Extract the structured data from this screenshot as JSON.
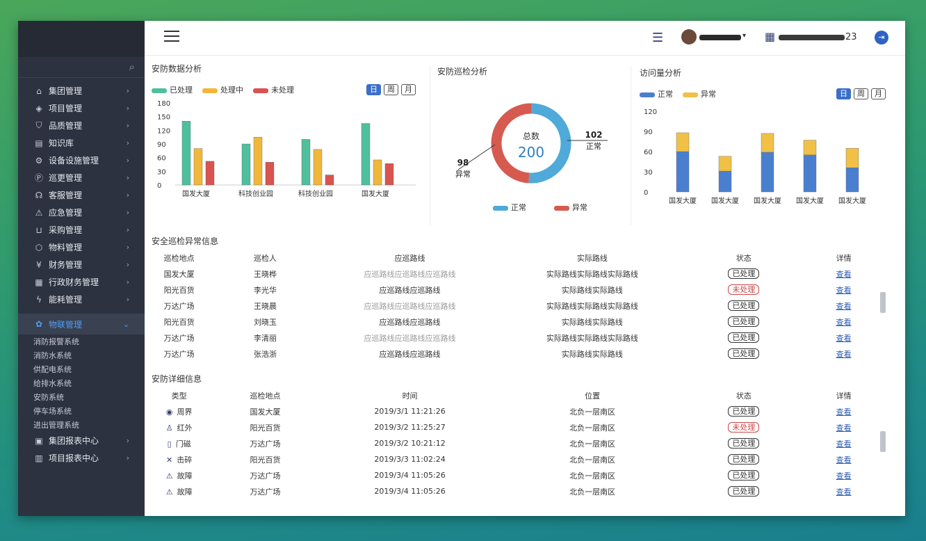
{
  "sidebar": {
    "items": [
      {
        "label": "集团管理",
        "icon": "building-icon",
        "glyph": "⌂"
      },
      {
        "label": "项目管理",
        "icon": "layers-icon",
        "glyph": "◈"
      },
      {
        "label": "品质管理",
        "icon": "shield-icon",
        "glyph": "⛉"
      },
      {
        "label": "知识库",
        "icon": "book-icon",
        "glyph": "▤"
      },
      {
        "label": "设备设施管理",
        "icon": "gear-icon",
        "glyph": "⚙"
      },
      {
        "label": "巡更管理",
        "icon": "patrol-icon",
        "glyph": "Ⓟ"
      },
      {
        "label": "客服管理",
        "icon": "headset-icon",
        "glyph": "☊"
      },
      {
        "label": "应急管理",
        "icon": "alert-icon",
        "glyph": "⚠"
      },
      {
        "label": "采购管理",
        "icon": "cart-icon",
        "glyph": "⊔"
      },
      {
        "label": "物料管理",
        "icon": "box-icon",
        "glyph": "⬡"
      },
      {
        "label": "财务管理",
        "icon": "finance-icon",
        "glyph": "¥"
      },
      {
        "label": "行政财务管理",
        "icon": "document-icon",
        "glyph": "▦"
      },
      {
        "label": "能耗管理",
        "icon": "energy-icon",
        "glyph": "ϟ"
      }
    ],
    "active": {
      "label": "物联管理",
      "icon": "network-icon",
      "glyph": "✿"
    },
    "subitems": [
      "消防报警系统",
      "消防水系统",
      "供配电系统",
      "给排水系统",
      "安防系统",
      "停车场系统",
      "进出管理系统"
    ],
    "bottom": [
      {
        "label": "集团报表中心",
        "icon": "report-icon",
        "glyph": "▣"
      },
      {
        "label": "项目报表中心",
        "icon": "chart-icon",
        "glyph": "▥"
      }
    ]
  },
  "topbar": {
    "date_suffix": "23"
  },
  "security_chart": {
    "title": "安防数据分析",
    "legend": [
      "已处理",
      "处理中",
      "未处理"
    ],
    "range_buttons": [
      "日",
      "周",
      "月"
    ],
    "chart_data": {
      "type": "bar",
      "categories": [
        "国发大厦",
        "科技创业园",
        "科技创业园",
        "国发大厦"
      ],
      "series": [
        {
          "name": "已处理",
          "values": [
            140,
            90,
            100,
            135
          ]
        },
        {
          "name": "处理中",
          "values": [
            80,
            105,
            78,
            55
          ]
        },
        {
          "name": "未处理",
          "values": [
            52,
            50,
            22,
            47
          ]
        }
      ],
      "ylim": [
        0,
        180
      ],
      "yticks": [
        "180",
        "150",
        "120",
        "90",
        "60",
        "30",
        "0"
      ]
    }
  },
  "patrol_chart": {
    "title": "安防巡检分析",
    "center_label": "总数",
    "center_value": "200",
    "normal_value": "102",
    "normal_label": "正常",
    "abnormal_value": "98",
    "abnormal_label": "异常",
    "legend": [
      "正常",
      "异常"
    ],
    "chart_data": {
      "type": "pie",
      "labels": [
        "正常",
        "异常"
      ],
      "values": [
        102,
        98
      ]
    }
  },
  "visitor_chart": {
    "title": "访问量分析",
    "legend": [
      "正常",
      "异常"
    ],
    "range_buttons": [
      "日",
      "周",
      "月"
    ],
    "chart_data": {
      "type": "bar",
      "stacked": true,
      "categories": [
        "国发大厦",
        "国发大厦",
        "国发大厦",
        "国发大厦",
        "国发大厦"
      ],
      "series": [
        {
          "name": "正常",
          "values": [
            60,
            31,
            59,
            55,
            36
          ]
        },
        {
          "name": "异常",
          "values": [
            28,
            22,
            28,
            22,
            29
          ]
        }
      ],
      "ylim": [
        0,
        120
      ],
      "yticks": [
        "120",
        "90",
        "60",
        "30",
        "0"
      ]
    }
  },
  "patrol_table": {
    "title": "安全巡检异常信息",
    "headers": [
      "巡检地点",
      "巡检人",
      "应巡路线",
      "实际路线",
      "状态",
      "详情"
    ],
    "rows": [
      [
        "国发大厦",
        "王晓桦",
        "应巡路线应巡路线应巡路线",
        "实际路线实际路线实际路线",
        "已处理",
        "查看"
      ],
      [
        "阳光百货",
        "李光华",
        "应巡路线应巡路线",
        "实际路线实际路线",
        "未处理",
        "查看"
      ],
      [
        "万达广场",
        "王晓晨",
        "应巡路线应巡路线应巡路线",
        "实际路线实际路线实际路线",
        "已处理",
        "查看"
      ],
      [
        "阳光百货",
        "刘晓玉",
        "应巡路线应巡路线",
        "实际路线实际路线",
        "已处理",
        "查看"
      ],
      [
        "万达广场",
        "李清丽",
        "应巡路线应巡路线应巡路线",
        "实际路线实际路线实际路线",
        "已处理",
        "查看"
      ],
      [
        "万达广场",
        "张浩浙",
        "应巡路线应巡路线",
        "实际路线实际路线",
        "已处理",
        "查看"
      ]
    ]
  },
  "security_table": {
    "title": "安防详细信息",
    "headers": [
      "类型",
      "巡检地点",
      "时间",
      "位置",
      "状态",
      "详情"
    ],
    "rows": [
      {
        "icon": "perimeter-icon",
        "glyph": "◉",
        "type": "周界",
        "place": "国发大厦",
        "time": "2019/3/1 11:21:26",
        "pos": "北负一层南区",
        "status": "已处理",
        "detail": "查看"
      },
      {
        "icon": "infrared-icon",
        "glyph": "♙",
        "type": "红外",
        "place": "阳光百货",
        "time": "2019/3/2 11:25:27",
        "pos": "北负一层南区",
        "status": "未处理",
        "detail": "查看"
      },
      {
        "icon": "door-sensor-icon",
        "glyph": "▯",
        "type": "门磁",
        "place": "万达广场",
        "time": "2019/3/2 10:21:12",
        "pos": "北负一层南区",
        "status": "已处理",
        "detail": "查看"
      },
      {
        "icon": "glass-break-icon",
        "glyph": "✕",
        "type": "击碎",
        "place": "阳光百货",
        "time": "2019/3/3 11:02:24",
        "pos": "北负一层南区",
        "status": "已处理",
        "detail": "查看"
      },
      {
        "icon": "fault-icon",
        "glyph": "⚠",
        "type": "故障",
        "place": "万达广场",
        "time": "2019/3/4 11:05:26",
        "pos": "北负一层南区",
        "status": "已处理",
        "detail": "查看"
      },
      {
        "icon": "fault-icon",
        "glyph": "⚠",
        "type": "故障",
        "place": "万达广场",
        "time": "2019/3/4 11:05:26",
        "pos": "北负一层南区",
        "status": "已处理",
        "detail": "查看"
      }
    ]
  },
  "colors": {
    "done": "#4fbf9e",
    "processing": "#f0b73a",
    "pending": "#d9534f",
    "normal": "#4a7fd0",
    "abnormal": "#f0c047",
    "donut_normal": "#4fa9d9",
    "donut_abnormal": "#d65a4f",
    "sidebar": "#2d3240",
    "active": "#4f9ef7"
  }
}
